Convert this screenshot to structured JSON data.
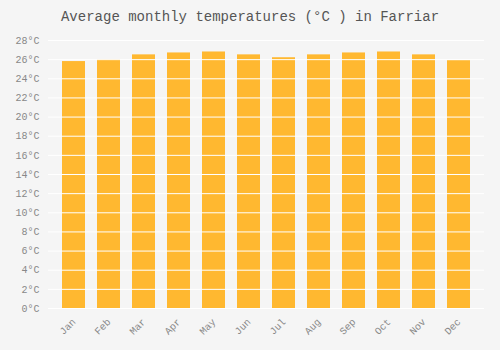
{
  "chart_data": {
    "type": "bar",
    "title": "Average monthly temperatures (°C ) in Farriar",
    "categories": [
      "Jan",
      "Feb",
      "Mar",
      "Apr",
      "May",
      "Jun",
      "Jul",
      "Aug",
      "Sep",
      "Oct",
      "Nov",
      "Dec"
    ],
    "values": [
      25.8,
      26.0,
      26.5,
      26.7,
      26.8,
      26.5,
      26.2,
      26.5,
      26.7,
      26.8,
      26.5,
      25.9
    ],
    "color": "#FFB830",
    "ylim": [
      0,
      28
    ],
    "yticks": [
      {
        "value": 0,
        "label": "0°C"
      },
      {
        "value": 2,
        "label": "2°C"
      },
      {
        "value": 4,
        "label": "4°C"
      },
      {
        "value": 6,
        "label": "6°C"
      },
      {
        "value": 8,
        "label": "8°C"
      },
      {
        "value": 10,
        "label": "10°C"
      },
      {
        "value": 12,
        "label": "12°C"
      },
      {
        "value": 14,
        "label": "14°C"
      },
      {
        "value": 16,
        "label": "16°C"
      },
      {
        "value": 18,
        "label": "18°C"
      },
      {
        "value": 20,
        "label": "20°C"
      },
      {
        "value": 22,
        "label": "22°C"
      },
      {
        "value": 24,
        "label": "24°C"
      },
      {
        "value": 26,
        "label": "26°C"
      },
      {
        "value": 28,
        "label": "28°C"
      }
    ],
    "grid": true
  }
}
